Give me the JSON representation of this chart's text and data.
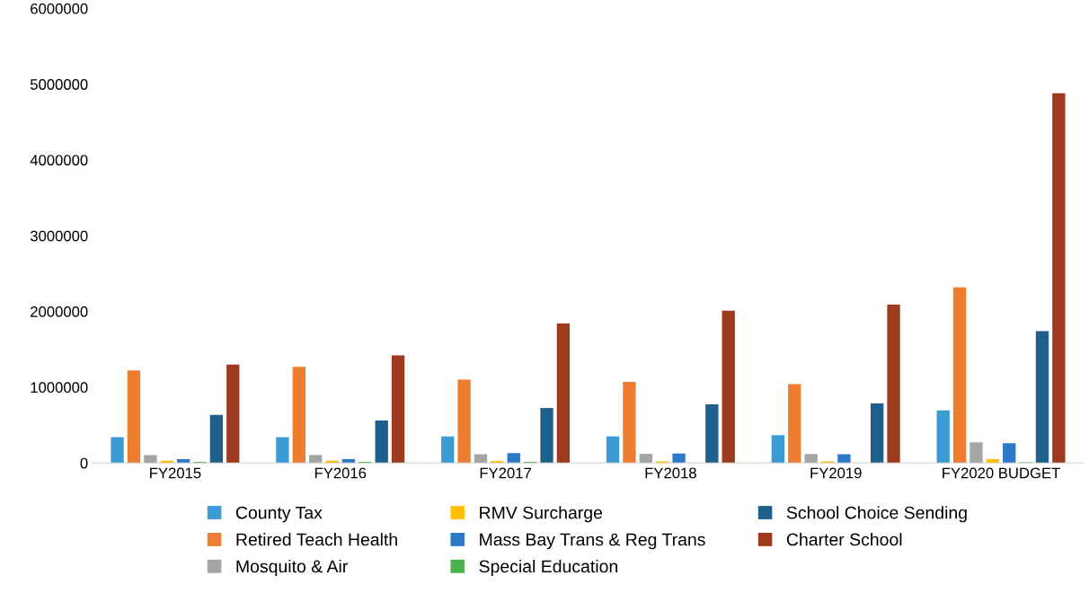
{
  "chart_data": {
    "type": "bar",
    "categories": [
      "FY2015",
      "FY2016",
      "FY2017",
      "FY2018",
      "FY2019",
      "FY2020 BUDGET"
    ],
    "series": [
      {
        "name": "County Tax",
        "color": "#3a9bd5",
        "values": [
          340000,
          340000,
          350000,
          350000,
          367000,
          695000
        ]
      },
      {
        "name": "Retired Teach Health",
        "color": "#ed7d31",
        "values": [
          1220000,
          1270000,
          1100000,
          1070000,
          1040000,
          2320000
        ]
      },
      {
        "name": "Mosquito & Air",
        "color": "#a5a5a5",
        "values": [
          105000,
          105000,
          115000,
          120000,
          118000,
          272000
        ]
      },
      {
        "name": "RMV Surcharge",
        "color": "#ffc000",
        "values": [
          30000,
          30000,
          25000,
          20000,
          20000,
          50000
        ]
      },
      {
        "name": "Mass Bay Trans & Reg Trans",
        "color": "#2e78c8",
        "values": [
          50000,
          50000,
          130000,
          125000,
          115000,
          260000
        ]
      },
      {
        "name": "Special Education",
        "color": "#4caf50",
        "values": [
          15000,
          15000,
          15000,
          0,
          0,
          10000
        ]
      },
      {
        "name": "School Choice Sending",
        "color": "#1f5f8b",
        "values": [
          635000,
          560000,
          725000,
          773000,
          785000,
          1740000
        ]
      },
      {
        "name": "Charter School",
        "color": "#9e3b1e",
        "values": [
          1300000,
          1420000,
          1840000,
          2010000,
          2090000,
          4880000
        ]
      }
    ],
    "ylim": [
      0,
      6000000
    ],
    "yticks": [
      0,
      1000000,
      2000000,
      3000000,
      4000000,
      5000000,
      6000000
    ],
    "grid": false,
    "legend": "bottom"
  }
}
